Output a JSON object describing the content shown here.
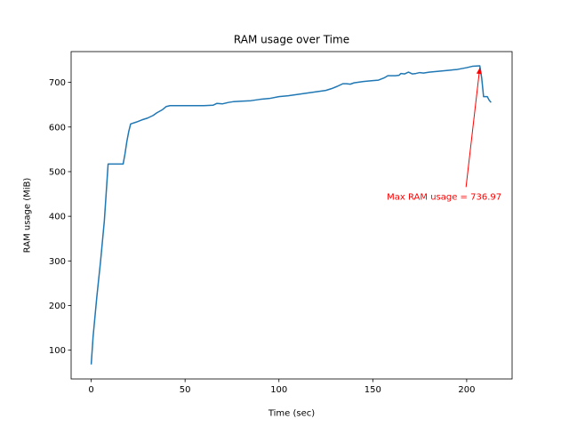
{
  "chart_data": {
    "type": "line",
    "title": "RAM usage over Time",
    "xlabel": "Time (sec)",
    "ylabel": "RAM usage (MiB)",
    "xlim": [
      -10.7,
      224.2
    ],
    "ylim": [
      35.5,
      769.0
    ],
    "xticks": [
      0,
      50,
      100,
      150,
      200
    ],
    "yticks": [
      100,
      200,
      300,
      400,
      500,
      600,
      700
    ],
    "grid": false,
    "legend": "none",
    "series": [
      {
        "color": "#1f77b4",
        "points": [
          [
            0,
            68
          ],
          [
            1,
            130
          ],
          [
            3,
            220
          ],
          [
            5,
            300
          ],
          [
            7,
            390
          ],
          [
            9,
            517
          ],
          [
            11,
            517
          ],
          [
            14,
            517
          ],
          [
            17,
            517
          ],
          [
            18,
            540
          ],
          [
            19,
            568
          ],
          [
            20,
            590
          ],
          [
            21,
            607
          ],
          [
            24,
            611
          ],
          [
            27,
            616
          ],
          [
            30,
            620
          ],
          [
            33,
            626
          ],
          [
            35,
            632
          ],
          [
            38,
            639
          ],
          [
            40,
            646
          ],
          [
            42,
            648
          ],
          [
            50,
            648
          ],
          [
            60,
            648
          ],
          [
            65,
            649
          ],
          [
            67,
            653
          ],
          [
            70,
            652
          ],
          [
            73,
            655
          ],
          [
            76,
            657
          ],
          [
            80,
            658
          ],
          [
            85,
            659
          ],
          [
            90,
            662
          ],
          [
            95,
            664
          ],
          [
            100,
            668
          ],
          [
            105,
            670
          ],
          [
            110,
            673
          ],
          [
            115,
            676
          ],
          [
            120,
            679
          ],
          [
            125,
            682
          ],
          [
            128,
            686
          ],
          [
            131,
            691
          ],
          [
            134,
            697
          ],
          [
            136,
            697
          ],
          [
            138,
            696
          ],
          [
            140,
            699
          ],
          [
            145,
            702
          ],
          [
            150,
            704
          ],
          [
            153,
            705
          ],
          [
            156,
            710
          ],
          [
            158,
            715
          ],
          [
            160,
            715
          ],
          [
            162,
            715
          ],
          [
            164,
            716
          ],
          [
            165,
            720
          ],
          [
            167,
            719
          ],
          [
            169,
            723
          ],
          [
            171,
            719
          ],
          [
            173,
            720
          ],
          [
            175,
            722
          ],
          [
            177,
            721
          ],
          [
            180,
            723
          ],
          [
            185,
            725
          ],
          [
            190,
            727
          ],
          [
            195,
            729
          ],
          [
            200,
            733
          ],
          [
            203,
            736
          ],
          [
            207,
            737
          ],
          [
            208,
            710
          ],
          [
            209,
            668
          ],
          [
            211,
            668
          ],
          [
            212,
            660
          ],
          [
            213,
            655
          ]
        ]
      }
    ],
    "annotation": {
      "text": "Max RAM usage = 736.97",
      "color": "#ff0000",
      "point": [
        207,
        736.97
      ],
      "text_anchor_data": [
        157.5,
        437.5
      ]
    }
  }
}
